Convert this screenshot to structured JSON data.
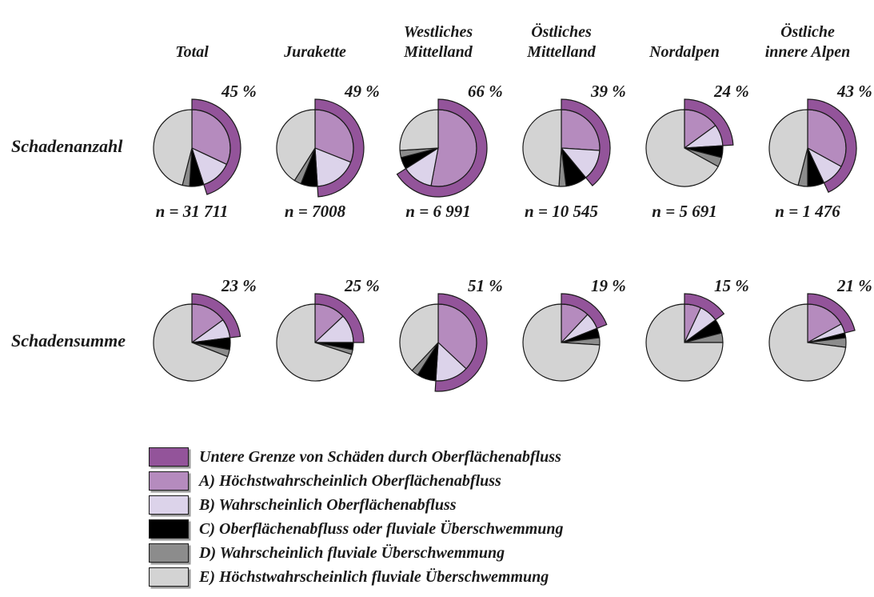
{
  "chart_data": {
    "type": "pie",
    "description": "Two rows of pie charts (damage counts and damage sums) per Swiss region; outer purple arc marks the lower bound of surface-runoff damages as percent of pie, clockwise from 12 o'clock.",
    "segment_order": [
      "A",
      "B",
      "C",
      "D",
      "E"
    ],
    "colors": {
      "arc": "#93549A",
      "A": "#B58BBE",
      "B": "#DCD3EA",
      "C": "#000000",
      "D": "#8C8C8C",
      "E": "#D3D3D3",
      "outline": "#1a1a1a"
    },
    "columns": [
      "Total",
      "Jurakette",
      "Westliches\nMittelland",
      "Östliches\nMittelland",
      "Nordalpen",
      "Östliche\ninnere Alpen"
    ],
    "rows": [
      {
        "label": "Schadenanzahl",
        "pies": [
          {
            "column": "Total",
            "arc_percent": 45,
            "percent_label": "45 %",
            "n_label": "n = 31 711",
            "segments": {
              "A": 32,
              "B": 13,
              "C": 6,
              "D": 3,
              "E": 46
            }
          },
          {
            "column": "Jurakette",
            "arc_percent": 49,
            "percent_label": "49 %",
            "n_label": "n = 7008",
            "segments": {
              "A": 31,
              "B": 18,
              "C": 7,
              "D": 3,
              "E": 41
            }
          },
          {
            "column": "Westliches Mittelland",
            "arc_percent": 66,
            "percent_label": "66 %",
            "n_label": "n = 6 991",
            "segments": {
              "A": 53,
              "B": 13,
              "C": 5,
              "D": 3,
              "E": 26
            }
          },
          {
            "column": "Östliches Mittelland",
            "arc_percent": 39,
            "percent_label": "39 %",
            "n_label": "n = 10 545",
            "segments": {
              "A": 26,
              "B": 13,
              "C": 9,
              "D": 3,
              "E": 49
            }
          },
          {
            "column": "Nordalpen",
            "arc_percent": 24,
            "percent_label": "24 %",
            "n_label": "n = 5 691",
            "segments": {
              "A": 15,
              "B": 9,
              "C": 5,
              "D": 4,
              "E": 67
            }
          },
          {
            "column": "Östliche innere Alpen",
            "arc_percent": 43,
            "percent_label": "43 %",
            "n_label": "n = 1 476",
            "segments": {
              "A": 33,
              "B": 10,
              "C": 7,
              "D": 4,
              "E": 46
            }
          }
        ]
      },
      {
        "label": "Schadensumme",
        "pies": [
          {
            "column": "Total",
            "arc_percent": 23,
            "percent_label": "23 %",
            "segments": {
              "A": 15,
              "B": 8,
              "C": 5,
              "D": 3,
              "E": 69
            }
          },
          {
            "column": "Jurakette",
            "arc_percent": 25,
            "percent_label": "25 %",
            "segments": {
              "A": 13,
              "B": 12,
              "C": 3,
              "D": 2,
              "E": 70
            }
          },
          {
            "column": "Westliches Mittelland",
            "arc_percent": 51,
            "percent_label": "51 %",
            "segments": {
              "A": 37,
              "B": 14,
              "C": 8,
              "D": 3,
              "E": 38
            }
          },
          {
            "column": "Östliches Mittelland",
            "arc_percent": 19,
            "percent_label": "19 %",
            "segments": {
              "A": 12,
              "B": 7,
              "C": 4,
              "D": 3,
              "E": 74
            }
          },
          {
            "column": "Nordalpen",
            "arc_percent": 15,
            "percent_label": "15 %",
            "segments": {
              "A": 7,
              "B": 8,
              "C": 6,
              "D": 4,
              "E": 75
            }
          },
          {
            "column": "Östliche innere Alpen",
            "arc_percent": 21,
            "percent_label": "21 %",
            "segments": {
              "A": 17,
              "B": 4,
              "C": 2,
              "D": 4,
              "E": 73
            }
          }
        ]
      }
    ],
    "legend": [
      {
        "color_key": "arc",
        "label": "Untere Grenze von Schäden durch Oberflächenabfluss"
      },
      {
        "color_key": "A",
        "label": "A) Höchstwahrscheinlich Oberflächenabfluss"
      },
      {
        "color_key": "B",
        "label": "B) Wahrscheinlich Oberflächenabfluss"
      },
      {
        "color_key": "C",
        "label": "C) Oberflächenabfluss oder fluviale Überschwemmung"
      },
      {
        "color_key": "D",
        "label": "D) Wahrscheinlich fluviale Überschwemmung"
      },
      {
        "color_key": "E",
        "label": "E) Höchstwahrscheinlich fluviale Überschwemmung"
      }
    ],
    "legend_position": "bottom-left",
    "grid": false
  }
}
